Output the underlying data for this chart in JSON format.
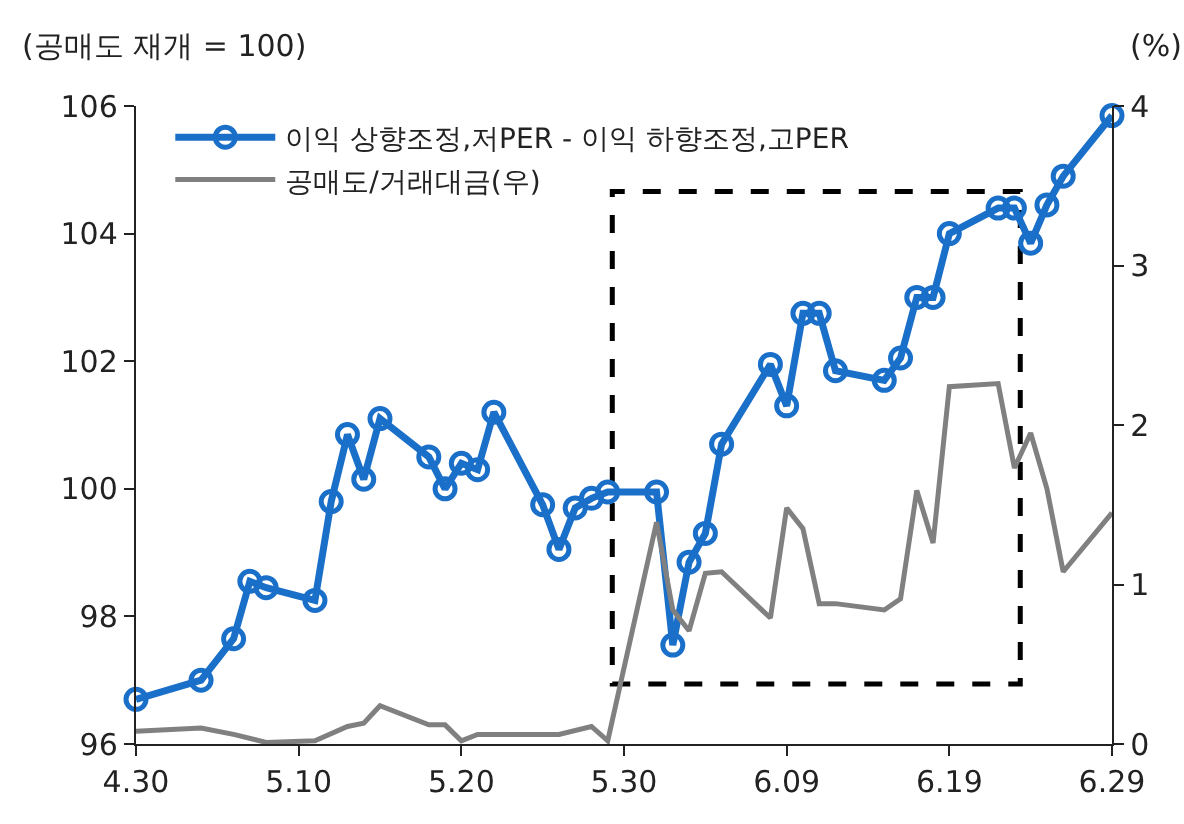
{
  "chart_data": {
    "type": "line",
    "ylabel": "(공매도 재개 = 100)",
    "y2label": "(%)",
    "x": [
      "--04-30",
      "--05-04",
      "--05-06",
      "--05-07",
      "--05-08",
      "--05-11",
      "--05-12",
      "--05-13",
      "--05-14",
      "--05-15",
      "--05-18",
      "--05-19",
      "--05-20",
      "--05-21",
      "--05-22",
      "--05-25",
      "--05-26",
      "--05-27",
      "--05-28",
      "--05-29",
      "--06-01",
      "--06-02",
      "--06-03",
      "--06-04",
      "--06-05",
      "--06-08",
      "--06-09",
      "--06-10",
      "--06-11",
      "--06-12",
      "--06-15",
      "--06-16",
      "--06-17",
      "--06-18",
      "--06-19",
      "--06-22",
      "--06-23",
      "--06-24",
      "--06-25",
      "--06-26",
      "--06-29"
    ],
    "series": [
      {
        "name": "이익 상향조정,저PER - 이익 하향조정,고PER",
        "color": "#1a6fc9",
        "marker": "circle",
        "values": [
          96.7,
          97.0,
          97.65,
          98.55,
          98.45,
          98.25,
          99.8,
          100.85,
          100.15,
          101.1,
          100.5,
          100.0,
          100.4,
          100.3,
          101.2,
          99.75,
          99.05,
          99.7,
          99.85,
          99.95,
          99.95,
          97.55,
          98.85,
          99.3,
          100.7,
          101.95,
          101.3,
          102.75,
          102.75,
          101.85,
          101.7,
          102.05,
          103.0,
          103.0,
          104.0,
          104.4,
          104.4,
          103.85,
          104.45,
          104.9,
          105.85
        ]
      },
      {
        "name": "공매도/거래대금(우)",
        "color": "#808080",
        "marker": "none",
        "axis": "y2",
        "x": [
          "--04-30",
          "--05-04",
          "--05-06",
          "--05-08",
          "--05-11",
          "--05-13",
          "--05-14",
          "--05-15",
          "--05-18",
          "--05-19",
          "--05-20",
          "--05-21",
          "--05-22",
          "--05-25",
          "--05-26",
          "--05-28",
          "--05-29",
          "--06-01",
          "--06-02",
          "--06-03",
          "--06-04",
          "--06-05",
          "--06-08",
          "--06-09",
          "--06-10",
          "--06-11",
          "--06-12",
          "--06-15",
          "--06-16",
          "--06-17",
          "--06-18",
          "--06-19",
          "--06-22",
          "--06-23",
          "--06-24",
          "--06-25",
          "--06-26",
          "--06-29"
        ],
        "values": [
          0.08,
          0.1,
          0.06,
          0.01,
          0.02,
          0.11,
          0.13,
          0.24,
          0.12,
          0.12,
          0.02,
          0.06,
          0.06,
          0.06,
          0.06,
          0.11,
          0.02,
          1.39,
          0.84,
          0.71,
          1.07,
          1.08,
          0.79,
          1.48,
          1.35,
          0.88,
          0.88,
          0.84,
          0.91,
          1.59,
          1.26,
          2.24,
          2.26,
          1.73,
          1.95,
          1.6,
          1.08,
          1.45
        ]
      }
    ],
    "xlim": [
      "--04-30",
      "--06-29"
    ],
    "xticks": [
      {
        "value": "--04-30",
        "label": "4.30"
      },
      {
        "value": "--05-10",
        "label": "5.10"
      },
      {
        "value": "--05-20",
        "label": "5.20"
      },
      {
        "value": "--05-30",
        "label": "5.30"
      },
      {
        "value": "--06-09",
        "label": "6.09"
      },
      {
        "value": "--06-19",
        "label": "6.19"
      },
      {
        "value": "--06-29",
        "label": "6.29"
      }
    ],
    "ylim": [
      96,
      106
    ],
    "yticks": [
      96,
      98,
      100,
      102,
      104,
      106
    ],
    "y2lim": [
      0,
      4
    ],
    "y2ticks": [
      0,
      1,
      2,
      3,
      4
    ],
    "grid": false,
    "legend": "top left"
  }
}
